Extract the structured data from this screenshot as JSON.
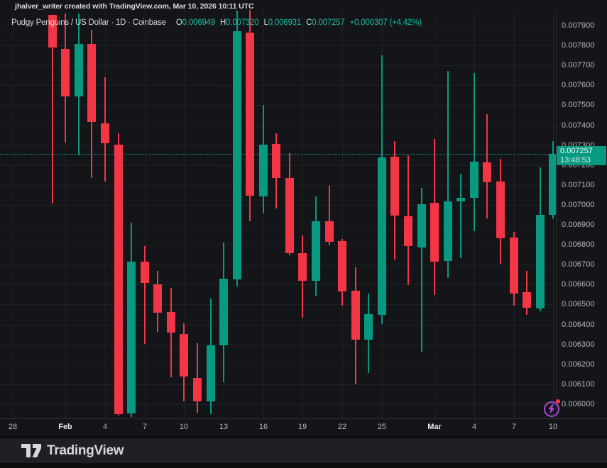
{
  "attribution": {
    "text": "jhalver_writer created with TradingView.com, Mar 10, 2026 10:11 UTC"
  },
  "header": {
    "title": "Pudgy Penguins / US Dollar · 1D · Coinbase",
    "ohlc": [
      {
        "label": "O",
        "value": "0.006949"
      },
      {
        "label": "H",
        "value": "0.007320"
      },
      {
        "label": "L",
        "value": "0.006931"
      },
      {
        "label": "C",
        "value": "0.007257"
      }
    ],
    "change": "+0.000307 (+4.42%)"
  },
  "price_tag": {
    "price": "0.007257",
    "countdown": "13:48:53"
  },
  "footer": {
    "brand": "TradingView"
  },
  "icons": {
    "footer_logo": "tradingview-logo",
    "boost": "lightning-bolt",
    "alert": "notification-dot"
  },
  "colors": {
    "up": "#089981",
    "down": "#f23645",
    "tag_bg": "#089981",
    "accent_purple": "#a44ad6",
    "alert_red": "#f23645",
    "axis_text": "#b4b8bf"
  },
  "chart_data": {
    "type": "candlestick",
    "title": "Pudgy Penguins / US Dollar",
    "interval": "1D",
    "exchange": "Coinbase",
    "price_line_value": 0.007257,
    "y_axis": {
      "min": 0.006,
      "max": 0.0079,
      "labels": [
        "0.007900",
        "0.007800",
        "0.007700",
        "0.007600",
        "0.007500",
        "0.007400",
        "0.007300",
        "0.007200",
        "0.007100",
        "0.007000",
        "0.006900",
        "0.006800",
        "0.006700",
        "0.006600",
        "0.006500",
        "0.006400",
        "0.006300",
        "0.006200",
        "0.006100",
        "0.006000"
      ]
    },
    "x_axis": {
      "ticks": [
        {
          "label": "28",
          "day": 0,
          "bold": false
        },
        {
          "label": "Feb",
          "day": 4,
          "bold": true
        },
        {
          "label": "4",
          "day": 7,
          "bold": false
        },
        {
          "label": "7",
          "day": 10,
          "bold": false
        },
        {
          "label": "10",
          "day": 13,
          "bold": false
        },
        {
          "label": "13",
          "day": 16,
          "bold": false
        },
        {
          "label": "16",
          "day": 19,
          "bold": false
        },
        {
          "label": "19",
          "day": 22,
          "bold": false
        },
        {
          "label": "22",
          "day": 25,
          "bold": false
        },
        {
          "label": "25",
          "day": 28,
          "bold": false
        },
        {
          "label": "Mar",
          "day": 32,
          "bold": true
        },
        {
          "label": "4",
          "day": 35,
          "bold": false
        },
        {
          "label": "7",
          "day": 38,
          "bold": false
        },
        {
          "label": "10",
          "day": 41,
          "bold": false
        }
      ]
    },
    "candles": [
      {
        "date": "Jan 31",
        "o": 0.007953,
        "h": 0.007955,
        "l": 0.007006,
        "c": 0.007788
      },
      {
        "date": "Feb 1",
        "o": 0.007781,
        "h": 0.007959,
        "l": 0.007312,
        "c": 0.007543
      },
      {
        "date": "Feb 2",
        "o": 0.007543,
        "h": 0.007959,
        "l": 0.007248,
        "c": 0.007809
      },
      {
        "date": "Feb 3",
        "o": 0.007809,
        "h": 0.007877,
        "l": 0.007134,
        "c": 0.007415
      },
      {
        "date": "Feb 4",
        "o": 0.007408,
        "h": 0.007639,
        "l": 0.007116,
        "c": 0.007308
      },
      {
        "date": "Feb 5",
        "o": 0.007301,
        "h": 0.007358,
        "l": 0.005942,
        "c": 0.005949
      },
      {
        "date": "Feb 6",
        "o": 0.005953,
        "h": 0.00691,
        "l": 0.005935,
        "c": 0.006714
      },
      {
        "date": "Feb 7",
        "o": 0.006714,
        "h": 0.006792,
        "l": 0.006302,
        "c": 0.006607
      },
      {
        "date": "Feb 8",
        "o": 0.0066,
        "h": 0.006668,
        "l": 0.006362,
        "c": 0.006458
      },
      {
        "date": "Feb 9",
        "o": 0.006461,
        "h": 0.006583,
        "l": 0.006134,
        "c": 0.006358
      },
      {
        "date": "Feb 10",
        "o": 0.006351,
        "h": 0.006405,
        "l": 0.006013,
        "c": 0.006138
      },
      {
        "date": "Feb 11",
        "o": 0.006131,
        "h": 0.006305,
        "l": 0.005957,
        "c": 0.006013
      },
      {
        "date": "Feb 12",
        "o": 0.006013,
        "h": 0.006529,
        "l": 0.00595,
        "c": 0.006294
      },
      {
        "date": "Feb 13",
        "o": 0.006294,
        "h": 0.00681,
        "l": 0.006109,
        "c": 0.006628
      },
      {
        "date": "Feb 14",
        "o": 0.006625,
        "h": 0.007976,
        "l": 0.006591,
        "c": 0.00787
      },
      {
        "date": "Feb 15",
        "o": 0.007863,
        "h": 0.007987,
        "l": 0.006917,
        "c": 0.007045
      },
      {
        "date": "Feb 16",
        "o": 0.007041,
        "h": 0.0075,
        "l": 0.006956,
        "c": 0.007301
      },
      {
        "date": "Feb 17",
        "o": 0.007304,
        "h": 0.007358,
        "l": 0.006981,
        "c": 0.007134
      },
      {
        "date": "Feb 18",
        "o": 0.007134,
        "h": 0.007258,
        "l": 0.006746,
        "c": 0.006757
      },
      {
        "date": "Feb 19",
        "o": 0.006757,
        "h": 0.006846,
        "l": 0.006433,
        "c": 0.006618
      },
      {
        "date": "Feb 20",
        "o": 0.006618,
        "h": 0.007041,
        "l": 0.006543,
        "c": 0.006917
      },
      {
        "date": "Feb 21",
        "o": 0.006917,
        "h": 0.007095,
        "l": 0.006796,
        "c": 0.006814
      },
      {
        "date": "Feb 22",
        "o": 0.006817,
        "h": 0.006828,
        "l": 0.006494,
        "c": 0.006565
      },
      {
        "date": "Feb 23",
        "o": 0.006568,
        "h": 0.006686,
        "l": 0.006099,
        "c": 0.006323
      },
      {
        "date": "Feb 24",
        "o": 0.006323,
        "h": 0.006554,
        "l": 0.006156,
        "c": 0.006451
      },
      {
        "date": "Feb 25",
        "o": 0.006447,
        "h": 0.007752,
        "l": 0.006401,
        "c": 0.007237
      },
      {
        "date": "Feb 26",
        "o": 0.00724,
        "h": 0.007319,
        "l": 0.006725,
        "c": 0.006945
      },
      {
        "date": "Feb 27",
        "o": 0.006941,
        "h": 0.007248,
        "l": 0.006596,
        "c": 0.006792
      },
      {
        "date": "Feb 28",
        "o": 0.006785,
        "h": 0.007084,
        "l": 0.006262,
        "c": 0.007002
      },
      {
        "date": "Mar 1",
        "o": 0.007009,
        "h": 0.007329,
        "l": 0.006547,
        "c": 0.006714
      },
      {
        "date": "Mar 2",
        "o": 0.006718,
        "h": 0.007674,
        "l": 0.006632,
        "c": 0.007016
      },
      {
        "date": "Mar 3",
        "o": 0.007016,
        "h": 0.007158,
        "l": 0.006732,
        "c": 0.007037
      },
      {
        "date": "Mar 4",
        "o": 0.007034,
        "h": 0.00766,
        "l": 0.006867,
        "c": 0.007216
      },
      {
        "date": "Mar 5",
        "o": 0.007212,
        "h": 0.007454,
        "l": 0.006931,
        "c": 0.007112
      },
      {
        "date": "Mar 6",
        "o": 0.007116,
        "h": 0.00723,
        "l": 0.006703,
        "c": 0.006831
      },
      {
        "date": "Mar 7",
        "o": 0.006835,
        "h": 0.006863,
        "l": 0.006494,
        "c": 0.006554
      },
      {
        "date": "Mar 8",
        "o": 0.006561,
        "h": 0.006668,
        "l": 0.006447,
        "c": 0.006483
      },
      {
        "date": "Mar 9",
        "o": 0.006479,
        "h": 0.007187,
        "l": 0.006465,
        "c": 0.006949
      },
      {
        "date": "Mar 10",
        "o": 0.006949,
        "h": 0.00732,
        "l": 0.006931,
        "c": 0.007257
      }
    ]
  }
}
